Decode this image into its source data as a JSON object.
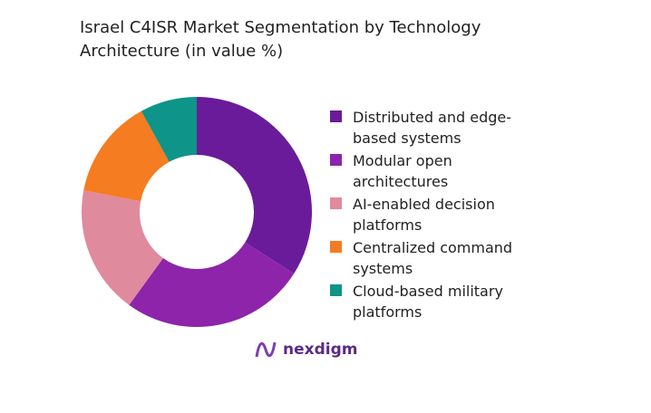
{
  "chart_data": {
    "type": "donut",
    "title": "Israel C4ISR Market Segmentation by Technology Architecture (in value %)",
    "categories": [
      "Distributed and edge-based systems",
      "Modular open architectures",
      "AI-enabled decision platforms",
      "Centralized command systems",
      "Cloud-based military platforms"
    ],
    "values": [
      34,
      26,
      18,
      14,
      8
    ],
    "colors": [
      "#6a1b9a",
      "#8e24aa",
      "#e08a9e",
      "#f57c20",
      "#0e9488"
    ],
    "legend": "right"
  },
  "brand": "nexdigm"
}
